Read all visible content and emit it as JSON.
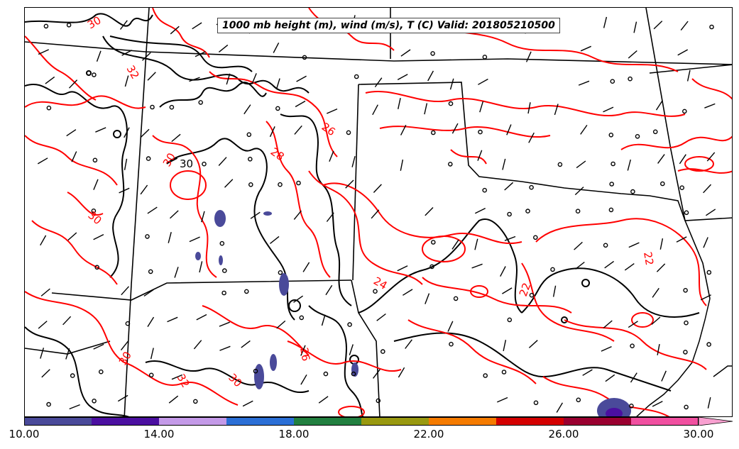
{
  "title": "1000 mb height (m), wind (m/s), T (C) Valid: 201805210500",
  "colorbar": {
    "ticks": [
      "10.00",
      "14.00",
      "18.00",
      "22.00",
      "26.00",
      "30.00"
    ],
    "colors": [
      "#4a4a9a",
      "#4b0fa0",
      "#c49ae8",
      "#2b6fd6",
      "#228040",
      "#999910",
      "#f57b00",
      "#d40000",
      "#9a0030",
      "#f050a0",
      "#f8a0d0"
    ]
  },
  "contour_labels": {
    "temperature": [
      "30",
      "32",
      "26",
      "28",
      "30",
      "30",
      "24",
      "22",
      "22",
      "30",
      "32",
      "30",
      "26"
    ],
    "height": [
      "30"
    ]
  },
  "colors": {
    "temperature": "#ff0000",
    "height": "#000000",
    "boundaries": "#000000"
  },
  "chart_data": {
    "type": "contour",
    "variables": [
      "1000 mb height (m)",
      "wind (m/s)",
      "T (C)"
    ],
    "valid_time": "201805210500",
    "colorbar_range": [
      10,
      30
    ],
    "temperature_contour_values": [
      22,
      24,
      26,
      28,
      30,
      32
    ],
    "height_contour_values": [
      30
    ]
  }
}
